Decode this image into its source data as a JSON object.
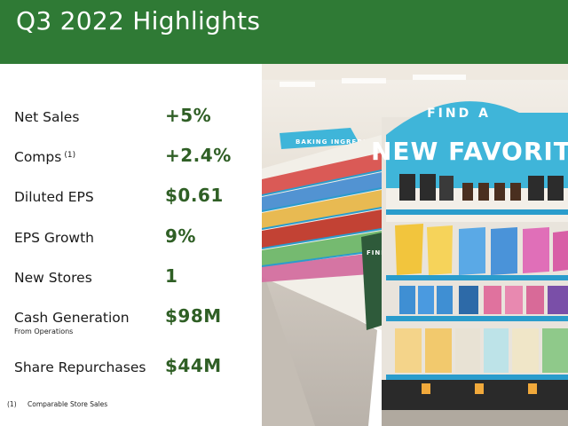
{
  "header": {
    "title": "Q3 2022 Highlights"
  },
  "metrics": [
    {
      "label": "Net Sales",
      "value": "+5%"
    },
    {
      "label": "Comps",
      "note": "(1)",
      "value": "+2.4%"
    },
    {
      "label": "Diluted EPS",
      "value": "$0.61"
    },
    {
      "label": "EPS Growth",
      "value": "9%"
    },
    {
      "label": "New Stores",
      "value": "1"
    },
    {
      "label": "Cash Generation",
      "sublabel": "From Operations",
      "value": "$98M"
    },
    {
      "label": "Share Repurchases",
      "value": "$44M"
    }
  ],
  "footnote": {
    "number": "(1)",
    "text": "Comparable Store Sales"
  },
  "photo": {
    "sign_line1": "FIND A",
    "sign_line2": "NEW FAVORITE",
    "banner_text": "FIND YOUR",
    "aisle_text": "BAKING INGREDIENTS"
  },
  "colors": {
    "header": "#2f7a35",
    "value": "#2f5f25",
    "sign": "#3fb5d9"
  }
}
